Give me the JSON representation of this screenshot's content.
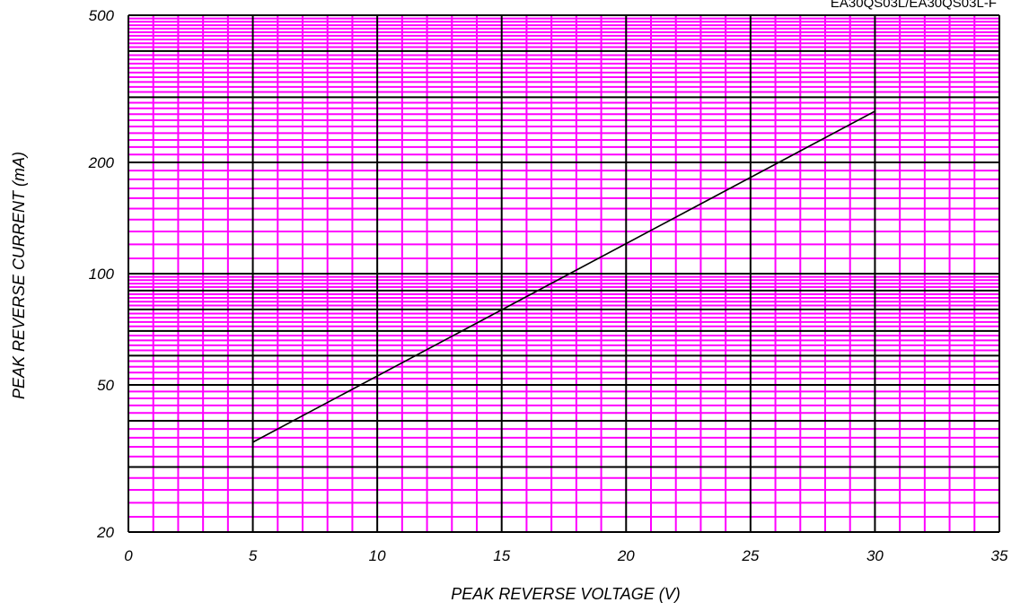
{
  "chart_data": {
    "type": "line",
    "title": "",
    "part_label": "EA30QS03L/EA30QS03L-F",
    "xlabel": "PEAK REVERSE VOLTAGE (V)",
    "ylabel": "PEAK REVERSE CURRENT (mA)",
    "xlim": [
      0,
      35
    ],
    "ylim": [
      20,
      500
    ],
    "y_scale": "log",
    "x_ticks": [
      "0",
      "5",
      "10",
      "15",
      "20",
      "25",
      "30",
      "35"
    ],
    "y_ticks": [
      "20",
      "50",
      "100",
      "200",
      "500"
    ],
    "grid": true,
    "colors": {
      "minor_grid": "#ff00ff",
      "major_grid": "#000000",
      "line": "#000000"
    },
    "series": [
      {
        "x": [
          5,
          30
        ],
        "y": [
          35,
          275
        ]
      }
    ]
  }
}
